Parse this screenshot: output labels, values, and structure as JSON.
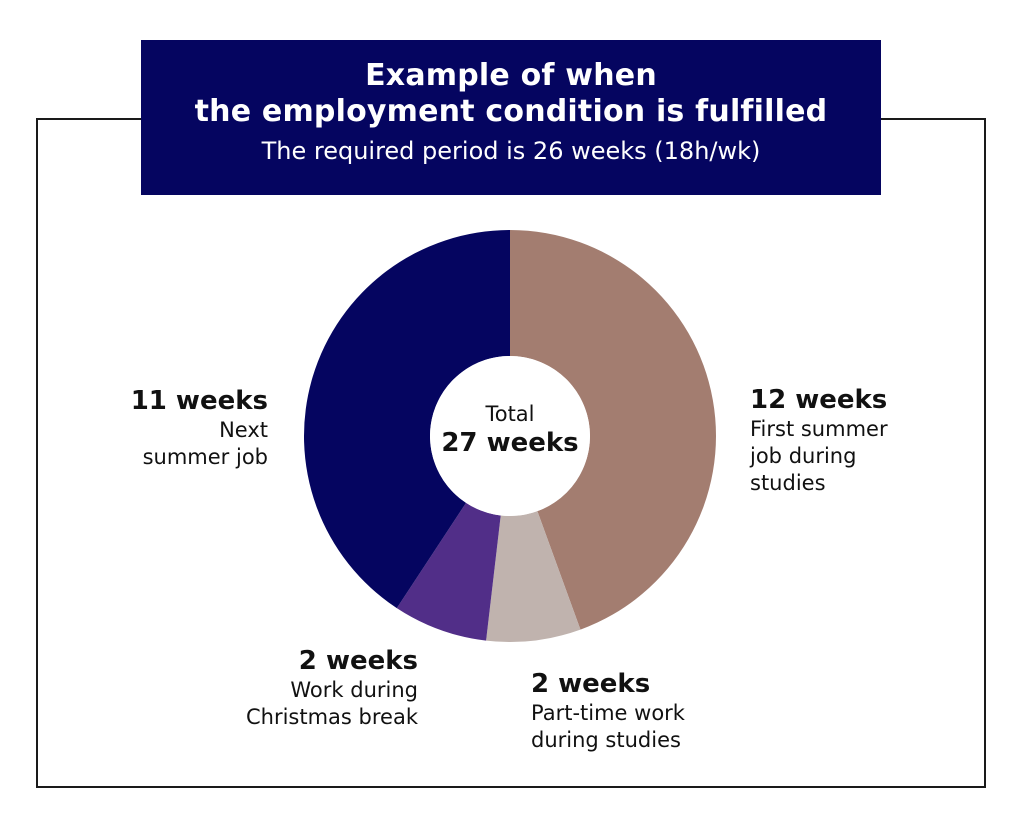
{
  "header": {
    "title_line1": "Example of when",
    "title_line2": "the employment condition is fulfilled",
    "subtitle": "The required period is 26 weeks (18h/wk)"
  },
  "center": {
    "label": "Total",
    "value": "27 weeks"
  },
  "labels": {
    "first_summer": {
      "amount": "12 weeks",
      "desc": "First summer\njob during\nstudies"
    },
    "part_time": {
      "amount": "2 weeks",
      "desc": "Part-time work\nduring studies"
    },
    "christmas": {
      "amount": "2 weeks",
      "desc": "Work during\nChristmas break"
    },
    "next_summer": {
      "amount": "11 weeks",
      "desc": "Next\nsummer job"
    }
  },
  "colors": {
    "header_bg": "#050560",
    "first_summer": "#A37D70",
    "part_time": "#C0B3AE",
    "christmas": "#512E88",
    "next_summer": "#050560"
  },
  "chart_data": {
    "type": "pie",
    "variant": "donut",
    "title": "Example of when the employment condition is fulfilled",
    "subtitle": "The required period is 26 weeks (18h/wk)",
    "total_label": "Total 27 weeks",
    "unit": "weeks",
    "slices": [
      {
        "label": "First summer job during studies",
        "value": 12,
        "color": "#A37D70"
      },
      {
        "label": "Part-time work during studies",
        "value": 2,
        "color": "#C0B3AE"
      },
      {
        "label": "Work during Christmas break",
        "value": 2,
        "color": "#512E88"
      },
      {
        "label": "Next summer job",
        "value": 11,
        "color": "#050560"
      }
    ]
  }
}
